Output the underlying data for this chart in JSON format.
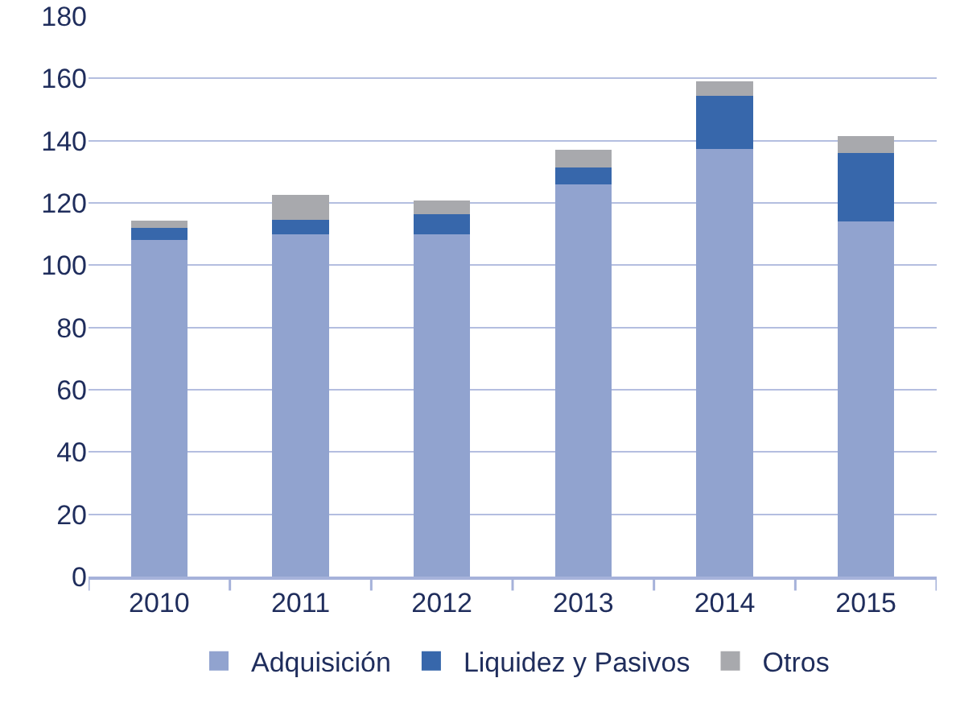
{
  "chart_data": {
    "type": "bar",
    "stacked": true,
    "categories": [
      "2010",
      "2011",
      "2012",
      "2013",
      "2014",
      "2015"
    ],
    "series": [
      {
        "name": "Adquisición",
        "color": "#91a3cf",
        "values": [
          108,
          110,
          110,
          126,
          137.4,
          114
        ]
      },
      {
        "name": "Liquidez y Pasivos",
        "color": "#3767ab",
        "values": [
          4,
          4.5,
          6.5,
          5.3,
          17,
          22
        ]
      },
      {
        "name": "Otros",
        "color": "#a8a9ad",
        "values": [
          2.4,
          8,
          4.3,
          5.8,
          4.7,
          5.5
        ]
      }
    ],
    "ylim": [
      0,
      180
    ],
    "yticks": [
      0,
      20,
      40,
      60,
      80,
      100,
      120,
      140,
      160,
      180
    ],
    "grid": "y",
    "legend": "bottom"
  }
}
